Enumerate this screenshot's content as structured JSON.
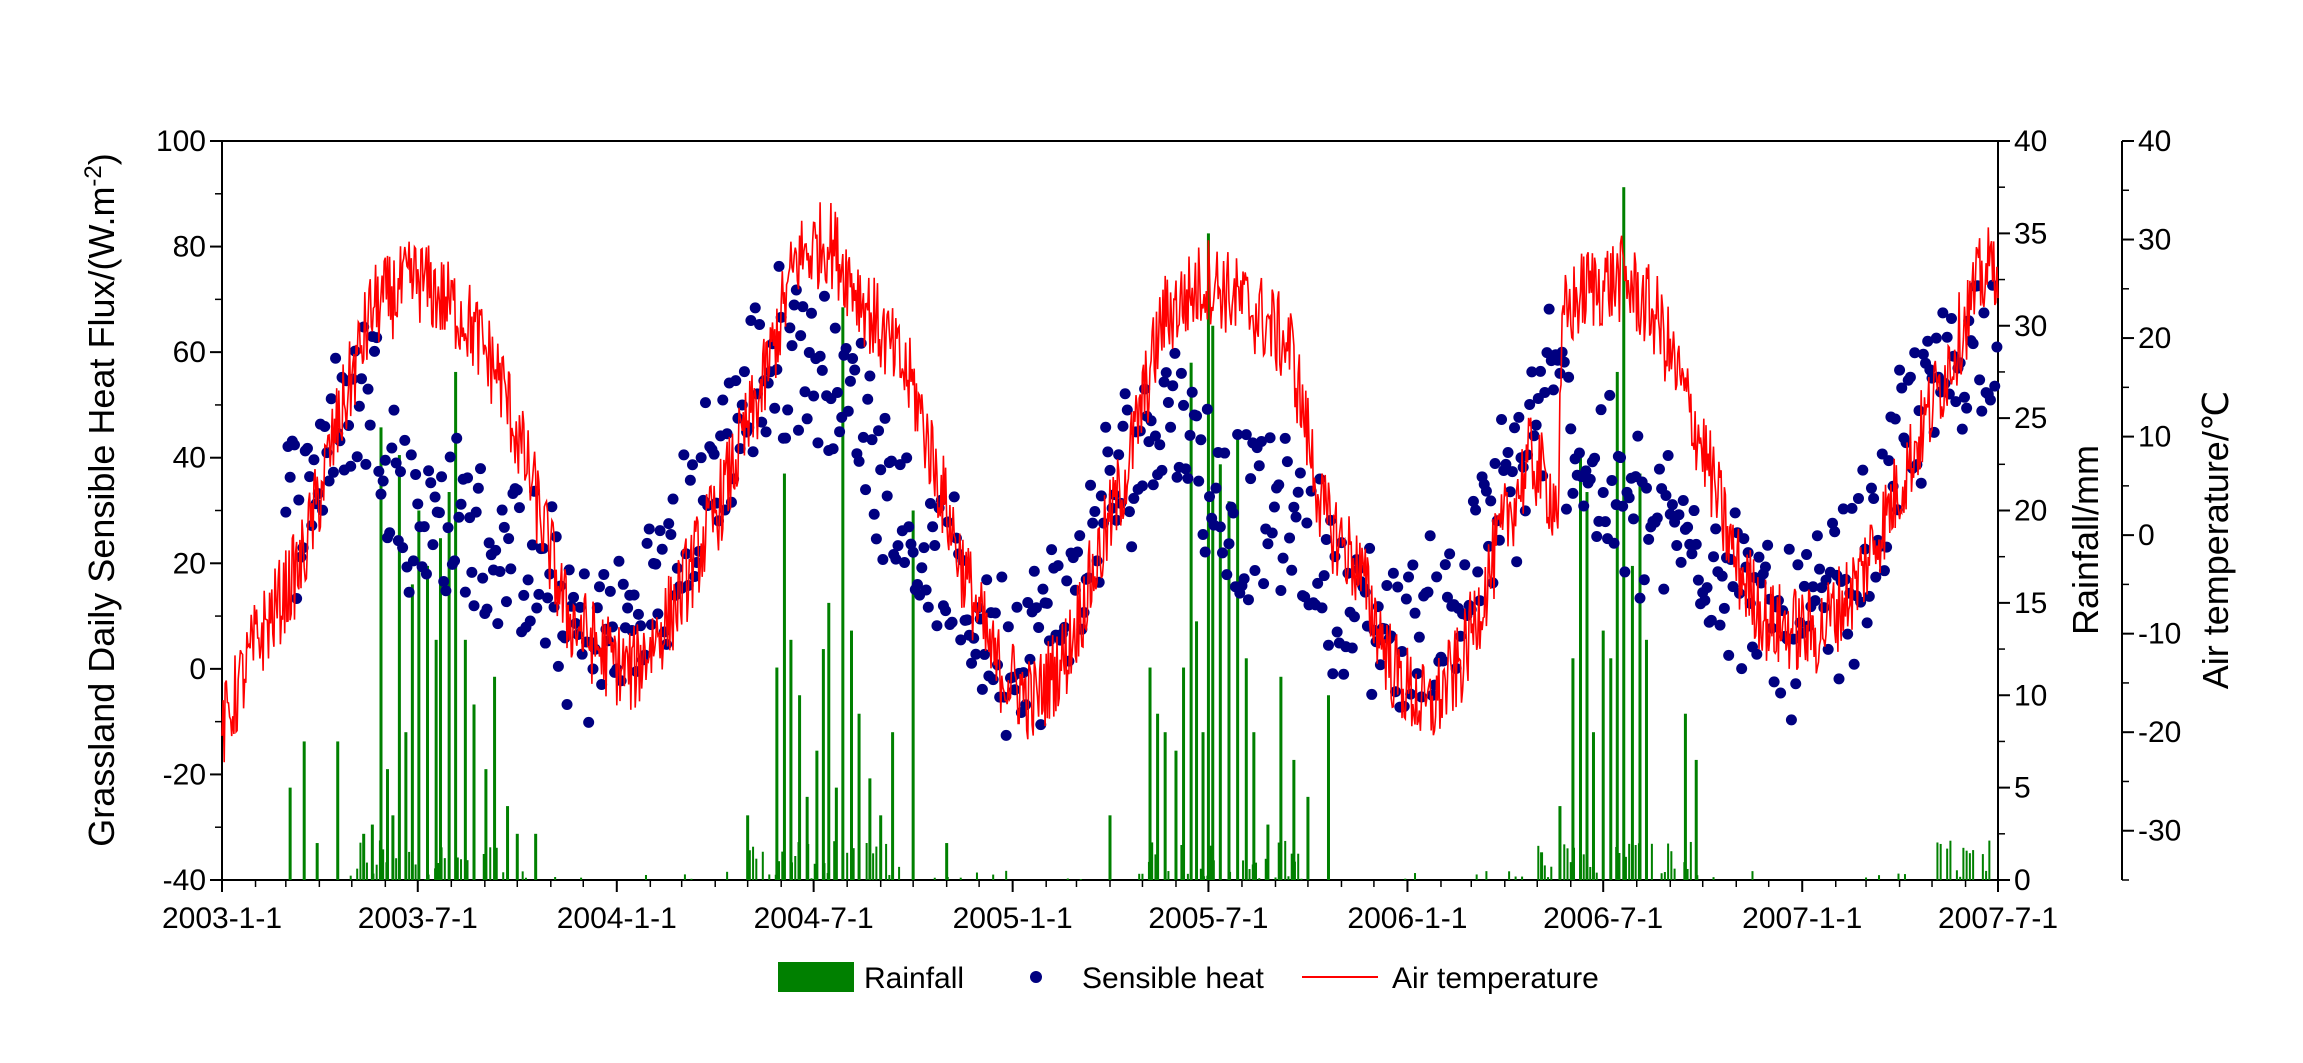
{
  "chart_data": {
    "type": "line",
    "x_axis": {
      "kind": "date",
      "range": [
        "2003-01-01",
        "2007-07-01"
      ],
      "ticks": [
        "2003-1-1",
        "2003-7-1",
        "2004-1-1",
        "2004-7-1",
        "2005-1-1",
        "2005-7-1",
        "2006-1-1",
        "2006-7-1",
        "2007-1-1",
        "2007-7-1"
      ]
    },
    "y_left": {
      "label": "Grassland Daily Sensible Heat Flux/(W.m",
      "label_sup": "-2",
      "label_end": ")",
      "range": [
        -40,
        100
      ],
      "ticks": [
        "100",
        "80",
        "60",
        "40",
        "20",
        "0",
        "-20",
        "-40"
      ]
    },
    "y_rain": {
      "label": "Rainfall/mm",
      "range": [
        0,
        40
      ],
      "ticks": [
        "40",
        "35",
        "30",
        "25",
        "20",
        "15",
        "10",
        "5",
        "0"
      ]
    },
    "y_temp": {
      "label": "Air temperature/℃",
      "range": [
        -35,
        40
      ],
      "ticks": [
        "40",
        "30",
        "20",
        "10",
        "0",
        "-10",
        "-20",
        "-30"
      ]
    },
    "legend": {
      "placement": "bottom-center",
      "items": [
        "Rainfall",
        "Sensible heat",
        "Air temperature"
      ]
    },
    "colors": {
      "rainfall": "#008000",
      "sensible_heat": "#000080",
      "air_temperature": "#ff0000"
    },
    "series": [
      {
        "name": "Rainfall",
        "type": "bar",
        "axis": "y_rain",
        "points": [
          [
            "2003-03-05",
            5.0
          ],
          [
            "2003-03-18",
            7.5
          ],
          [
            "2003-03-30",
            2.0
          ],
          [
            "2003-04-18",
            7.5
          ],
          [
            "2003-05-12",
            2.5
          ],
          [
            "2003-05-20",
            3.0
          ],
          [
            "2003-05-28",
            24.5
          ],
          [
            "2003-06-03",
            6.0
          ],
          [
            "2003-06-08",
            3.5
          ],
          [
            "2003-06-14",
            23.0
          ],
          [
            "2003-06-20",
            8.0
          ],
          [
            "2003-06-26",
            16.0
          ],
          [
            "2003-07-02",
            20.0
          ],
          [
            "2003-07-10",
            17.0
          ],
          [
            "2003-07-18",
            13.0
          ],
          [
            "2003-07-22",
            18.5
          ],
          [
            "2003-07-30",
            21.0
          ],
          [
            "2003-08-05",
            27.5
          ],
          [
            "2003-08-14",
            13.0
          ],
          [
            "2003-08-22",
            9.5
          ],
          [
            "2003-09-02",
            6.0
          ],
          [
            "2003-09-10",
            11.0
          ],
          [
            "2003-09-22",
            4.0
          ],
          [
            "2003-10-01",
            2.5
          ],
          [
            "2003-10-18",
            2.5
          ],
          [
            "2004-05-01",
            3.5
          ],
          [
            "2004-05-28",
            11.5
          ],
          [
            "2004-06-04",
            22.0
          ],
          [
            "2004-06-10",
            13.0
          ],
          [
            "2004-06-18",
            10.0
          ],
          [
            "2004-06-25",
            4.5
          ],
          [
            "2004-07-04",
            7.0
          ],
          [
            "2004-07-10",
            12.5
          ],
          [
            "2004-07-15",
            15.0
          ],
          [
            "2004-07-22",
            5.0
          ],
          [
            "2004-07-28",
            31.0
          ],
          [
            "2004-08-05",
            13.5
          ],
          [
            "2004-08-12",
            9.0
          ],
          [
            "2004-08-22",
            5.5
          ],
          [
            "2004-09-01",
            3.5
          ],
          [
            "2004-09-12",
            8.0
          ],
          [
            "2004-10-01",
            20.0
          ],
          [
            "2004-11-01",
            2.0
          ],
          [
            "2005-04-01",
            3.5
          ],
          [
            "2005-05-08",
            11.5
          ],
          [
            "2005-05-15",
            9.0
          ],
          [
            "2005-05-22",
            8.0
          ],
          [
            "2005-06-01",
            7.0
          ],
          [
            "2005-06-08",
            11.5
          ],
          [
            "2005-06-15",
            28.0
          ],
          [
            "2005-06-20",
            14.0
          ],
          [
            "2005-06-26",
            8.0
          ],
          [
            "2005-07-01",
            35.0
          ],
          [
            "2005-07-05",
            30.0
          ],
          [
            "2005-07-12",
            22.5
          ],
          [
            "2005-07-20",
            20.5
          ],
          [
            "2005-07-28",
            24.0
          ],
          [
            "2005-08-05",
            12.0
          ],
          [
            "2005-08-12",
            8.0
          ],
          [
            "2005-08-25",
            3.0
          ],
          [
            "2005-09-06",
            11.0
          ],
          [
            "2005-09-18",
            6.5
          ],
          [
            "2005-10-01",
            4.5
          ],
          [
            "2005-10-20",
            10.0
          ],
          [
            "2006-05-05",
            1.5
          ],
          [
            "2006-05-22",
            4.0
          ],
          [
            "2006-06-03",
            12.0
          ],
          [
            "2006-06-10",
            23.0
          ],
          [
            "2006-06-16",
            21.0
          ],
          [
            "2006-06-22",
            8.0
          ],
          [
            "2006-07-01",
            13.5
          ],
          [
            "2006-07-08",
            12.0
          ],
          [
            "2006-07-14",
            27.5
          ],
          [
            "2006-07-20",
            37.5
          ],
          [
            "2006-07-28",
            17.0
          ],
          [
            "2006-08-04",
            22.0
          ],
          [
            "2006-08-10",
            13.0
          ],
          [
            "2006-09-15",
            9.0
          ],
          [
            "2006-09-25",
            6.5
          ]
        ]
      },
      {
        "name": "Sensible heat",
        "type": "scatter",
        "axis": "y_left",
        "keypoints": [
          [
            "2003-03-01",
            28
          ],
          [
            "2003-04-15",
            46
          ],
          [
            "2003-05-20",
            55
          ],
          [
            "2003-06-20",
            30
          ],
          [
            "2003-08-15",
            27
          ],
          [
            "2003-10-15",
            18
          ],
          [
            "2003-12-01",
            5
          ],
          [
            "2004-01-15",
            8
          ],
          [
            "2004-02-20",
            20
          ],
          [
            "2004-04-01",
            38
          ],
          [
            "2004-05-15",
            56
          ],
          [
            "2004-06-15",
            62
          ],
          [
            "2004-08-15",
            48
          ],
          [
            "2004-10-01",
            25
          ],
          [
            "2004-11-15",
            12
          ],
          [
            "2005-01-01",
            2
          ],
          [
            "2005-02-15",
            10
          ],
          [
            "2005-04-15",
            38
          ],
          [
            "2005-05-30",
            52
          ],
          [
            "2005-07-15",
            30
          ],
          [
            "2005-09-15",
            28
          ],
          [
            "2005-11-15",
            10
          ],
          [
            "2006-01-01",
            6
          ],
          [
            "2006-02-15",
            13
          ],
          [
            "2006-04-15",
            38
          ],
          [
            "2006-05-15",
            55
          ],
          [
            "2006-06-15",
            38
          ],
          [
            "2006-08-15",
            27
          ],
          [
            "2006-10-15",
            22
          ],
          [
            "2006-12-01",
            8
          ],
          [
            "2007-01-15",
            9
          ],
          [
            "2007-03-01",
            22
          ],
          [
            "2007-04-15",
            48
          ],
          [
            "2007-05-30",
            60
          ],
          [
            "2007-07-01",
            66
          ]
        ]
      },
      {
        "name": "Air temperature",
        "type": "line",
        "axis": "y_temp",
        "keypoints": [
          [
            "2003-01-01",
            -20
          ],
          [
            "2003-02-01",
            -11
          ],
          [
            "2003-03-15",
            -3
          ],
          [
            "2003-04-15",
            10
          ],
          [
            "2003-05-20",
            23
          ],
          [
            "2003-07-01",
            26
          ],
          [
            "2003-08-15",
            22
          ],
          [
            "2003-09-15",
            16
          ],
          [
            "2003-10-15",
            5
          ],
          [
            "2003-11-15",
            -8
          ],
          [
            "2003-12-20",
            -12
          ],
          [
            "2004-01-15",
            -14
          ],
          [
            "2004-02-20",
            -8
          ],
          [
            "2004-04-01",
            2
          ],
          [
            "2004-05-15",
            15
          ],
          [
            "2004-06-15",
            28
          ],
          [
            "2004-07-15",
            30
          ],
          [
            "2004-08-20",
            23
          ],
          [
            "2004-10-01",
            15
          ],
          [
            "2004-11-15",
            -3
          ],
          [
            "2004-12-15",
            -13
          ],
          [
            "2005-01-20",
            -17
          ],
          [
            "2005-02-20",
            -12
          ],
          [
            "2005-04-15",
            6
          ],
          [
            "2005-05-20",
            22
          ],
          [
            "2005-07-01",
            26
          ],
          [
            "2005-08-20",
            22
          ],
          [
            "2005-09-15",
            19
          ],
          [
            "2005-10-15",
            2
          ],
          [
            "2005-11-15",
            -3
          ],
          [
            "2005-12-20",
            -14
          ],
          [
            "2006-01-20",
            -18
          ],
          [
            "2006-02-20",
            -13
          ],
          [
            "2006-04-01",
            1
          ],
          [
            "2006-04-25",
            8
          ],
          [
            "2006-05-20",
            3
          ],
          [
            "2006-05-25",
            22
          ],
          [
            "2006-06-15",
            25
          ],
          [
            "2006-07-20",
            26
          ],
          [
            "2006-08-20",
            22
          ],
          [
            "2006-10-01",
            9
          ],
          [
            "2006-11-01",
            -3
          ],
          [
            "2006-12-01",
            -9
          ],
          [
            "2007-01-15",
            -10
          ],
          [
            "2007-02-20",
            -5
          ],
          [
            "2007-04-01",
            5
          ],
          [
            "2007-05-15",
            17
          ],
          [
            "2007-06-15",
            26
          ],
          [
            "2007-07-01",
            28
          ]
        ]
      }
    ]
  }
}
